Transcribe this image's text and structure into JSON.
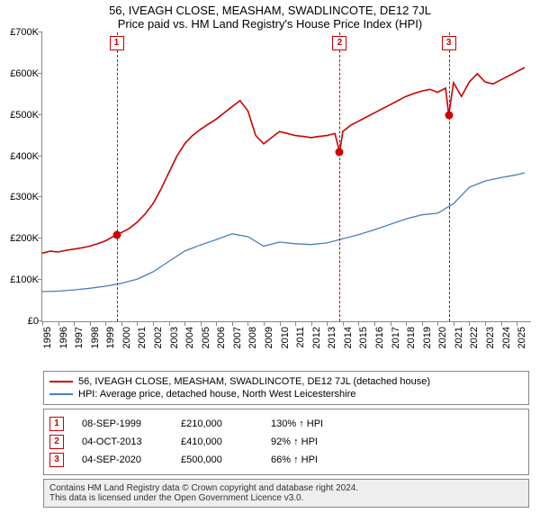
{
  "title": "56, IVEAGH CLOSE, MEASHAM, SWADLINCOTE, DE12 7JL",
  "subtitle": "Price paid vs. HM Land Registry's House Price Index (HPI)",
  "chart": {
    "type": "line",
    "background_color": "#ffffff",
    "axis_color": "#888888",
    "xlim": [
      1995,
      2025.9
    ],
    "ylim": [
      0,
      700000
    ],
    "yticks": [
      0,
      100000,
      200000,
      300000,
      400000,
      500000,
      600000,
      700000
    ],
    "ytick_labels": [
      "£0",
      "£100K",
      "£200K",
      "£300K",
      "£400K",
      "£500K",
      "£600K",
      "£700K"
    ],
    "xticks": [
      1995,
      1996,
      1997,
      1998,
      1999,
      2000,
      2001,
      2002,
      2003,
      2004,
      2005,
      2006,
      2007,
      2008,
      2009,
      2010,
      2011,
      2012,
      2013,
      2014,
      2015,
      2016,
      2017,
      2018,
      2019,
      2020,
      2021,
      2022,
      2023,
      2024,
      2025
    ],
    "xtick_labels": [
      "1995",
      "1996",
      "1997",
      "1998",
      "1999",
      "2000",
      "2001",
      "2002",
      "2003",
      "2004",
      "2005",
      "2006",
      "2007",
      "2008",
      "2009",
      "2010",
      "2011",
      "2012",
      "2013",
      "2014",
      "2015",
      "2016",
      "2017",
      "2018",
      "2019",
      "2020",
      "2021",
      "2022",
      "2023",
      "2024",
      "2025"
    ],
    "label_fontsize": 11,
    "series": [
      {
        "name": "price_line",
        "color": "#cc0000",
        "width": 1.6,
        "points": [
          [
            1995.0,
            165000
          ],
          [
            1995.5,
            170000
          ],
          [
            1996.0,
            168000
          ],
          [
            1996.5,
            172000
          ],
          [
            1997.0,
            175000
          ],
          [
            1997.5,
            178000
          ],
          [
            1998.0,
            182000
          ],
          [
            1998.5,
            188000
          ],
          [
            1999.0,
            195000
          ],
          [
            1999.7,
            210000
          ],
          [
            2000.0,
            215000
          ],
          [
            2000.5,
            225000
          ],
          [
            2001.0,
            240000
          ],
          [
            2001.5,
            260000
          ],
          [
            2002.0,
            285000
          ],
          [
            2002.5,
            320000
          ],
          [
            2003.0,
            360000
          ],
          [
            2003.5,
            400000
          ],
          [
            2004.0,
            430000
          ],
          [
            2004.5,
            450000
          ],
          [
            2005.0,
            465000
          ],
          [
            2005.5,
            478000
          ],
          [
            2006.0,
            490000
          ],
          [
            2006.5,
            505000
          ],
          [
            2007.0,
            520000
          ],
          [
            2007.5,
            535000
          ],
          [
            2008.0,
            510000
          ],
          [
            2008.5,
            450000
          ],
          [
            2009.0,
            430000
          ],
          [
            2009.5,
            445000
          ],
          [
            2010.0,
            460000
          ],
          [
            2010.5,
            455000
          ],
          [
            2011.0,
            450000
          ],
          [
            2011.5,
            448000
          ],
          [
            2012.0,
            445000
          ],
          [
            2012.5,
            448000
          ],
          [
            2013.0,
            450000
          ],
          [
            2013.5,
            455000
          ],
          [
            2013.8,
            410000
          ],
          [
            2014.0,
            460000
          ],
          [
            2014.5,
            475000
          ],
          [
            2015.0,
            485000
          ],
          [
            2015.5,
            495000
          ],
          [
            2016.0,
            505000
          ],
          [
            2016.5,
            515000
          ],
          [
            2017.0,
            525000
          ],
          [
            2017.5,
            535000
          ],
          [
            2018.0,
            545000
          ],
          [
            2018.5,
            552000
          ],
          [
            2019.0,
            558000
          ],
          [
            2019.5,
            562000
          ],
          [
            2020.0,
            555000
          ],
          [
            2020.5,
            565000
          ],
          [
            2020.7,
            500000
          ],
          [
            2021.0,
            578000
          ],
          [
            2021.5,
            545000
          ],
          [
            2022.0,
            580000
          ],
          [
            2022.5,
            600000
          ],
          [
            2023.0,
            580000
          ],
          [
            2023.5,
            575000
          ],
          [
            2024.0,
            585000
          ],
          [
            2024.5,
            595000
          ],
          [
            2025.0,
            605000
          ],
          [
            2025.5,
            615000
          ]
        ]
      },
      {
        "name": "hpi_line",
        "color": "#4a7ebb",
        "width": 1.3,
        "points": [
          [
            1995.0,
            72000
          ],
          [
            1996.0,
            73000
          ],
          [
            1997.0,
            76000
          ],
          [
            1998.0,
            80000
          ],
          [
            1999.0,
            85000
          ],
          [
            2000.0,
            92000
          ],
          [
            2001.0,
            102000
          ],
          [
            2002.0,
            120000
          ],
          [
            2003.0,
            145000
          ],
          [
            2004.0,
            170000
          ],
          [
            2005.0,
            185000
          ],
          [
            2006.0,
            198000
          ],
          [
            2007.0,
            212000
          ],
          [
            2008.0,
            205000
          ],
          [
            2009.0,
            182000
          ],
          [
            2010.0,
            192000
          ],
          [
            2011.0,
            188000
          ],
          [
            2012.0,
            186000
          ],
          [
            2013.0,
            190000
          ],
          [
            2014.0,
            200000
          ],
          [
            2015.0,
            210000
          ],
          [
            2016.0,
            222000
          ],
          [
            2017.0,
            235000
          ],
          [
            2018.0,
            248000
          ],
          [
            2019.0,
            258000
          ],
          [
            2020.0,
            262000
          ],
          [
            2021.0,
            285000
          ],
          [
            2022.0,
            325000
          ],
          [
            2023.0,
            340000
          ],
          [
            2024.0,
            348000
          ],
          [
            2025.0,
            355000
          ],
          [
            2025.5,
            360000
          ]
        ]
      }
    ],
    "markers": [
      {
        "n": "1",
        "x": 1999.7,
        "y": 210000,
        "date": "08-SEP-1999",
        "price": "£210,000",
        "pct": "130% ↑ HPI"
      },
      {
        "n": "2",
        "x": 2013.8,
        "y": 410000,
        "date": "04-OCT-2013",
        "price": "£410,000",
        "pct": "92% ↑ HPI"
      },
      {
        "n": "3",
        "x": 2020.7,
        "y": 500000,
        "date": "04-SEP-2020",
        "price": "£500,000",
        "pct": "66% ↑ HPI"
      }
    ],
    "marker_line_color": "#cc0000",
    "marker_box_border": "#cc0000",
    "marker_dot_color": "#cc0000"
  },
  "legend": {
    "items": [
      {
        "color": "#cc0000",
        "label": "56, IVEAGH CLOSE, MEASHAM, SWADLINCOTE, DE12 7JL (detached house)"
      },
      {
        "color": "#4a7ebb",
        "label": "HPI: Average price, detached house, North West Leicestershire"
      }
    ]
  },
  "footer": {
    "line1": "Contains HM Land Registry data © Crown copyright and database right 2024.",
    "line2": "This data is licensed under the Open Government Licence v3.0."
  }
}
